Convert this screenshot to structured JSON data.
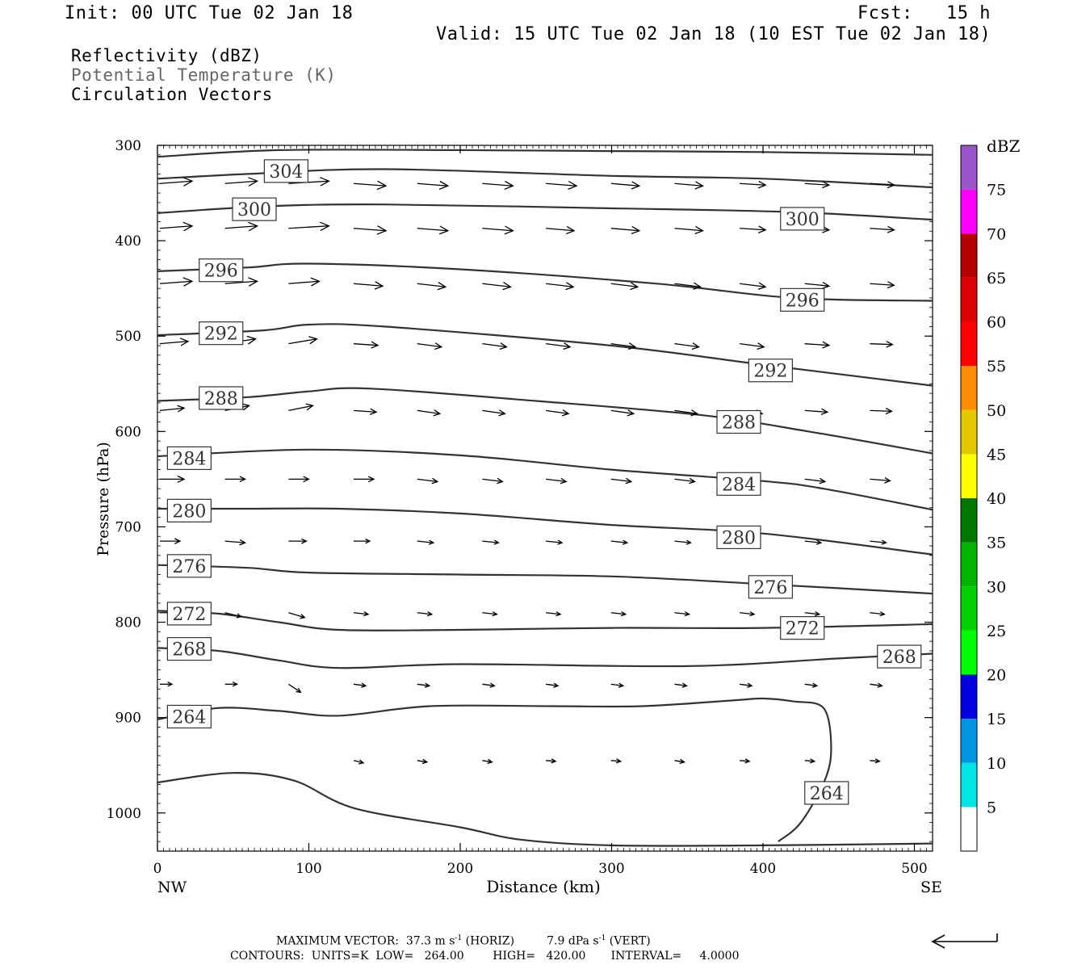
{
  "header": {
    "init": "Init: 00 UTC Tue 02 Jan 18",
    "fcst": "Fcst:   15 h",
    "valid": "Valid: 15 UTC Tue 02 Jan 18 (10 EST Tue 02 Jan 18)"
  },
  "legend_lines": {
    "line1": "Reflectivity (dBZ)",
    "line2": "Potential Temperature (K)",
    "line3": "Circulation Vectors"
  },
  "colors": {
    "contour": "#333333",
    "theta_legend": "#666666",
    "colorbar": [
      "#ffffff",
      "#00e5e5",
      "#0096e1",
      "#0000e1",
      "#00ff00",
      "#00d200",
      "#00b400",
      "#007800",
      "#ffff00",
      "#e6c800",
      "#ff8c00",
      "#ff0000",
      "#dc0000",
      "#b40000",
      "#ff00ff",
      "#9955c9",
      "#ffffff"
    ]
  },
  "chart_data": {
    "type": "cross-section",
    "xlabel": "Distance (km)",
    "ylabel": "Pressure (hPa)",
    "xlim": [
      0,
      512
    ],
    "ylim": [
      1040,
      300
    ],
    "x_ticks": [
      "0",
      "100",
      "200",
      "300",
      "400",
      "500"
    ],
    "x_tick_values": [
      0,
      100,
      200,
      300,
      400,
      500
    ],
    "y_ticks": [
      "300",
      "400",
      "500",
      "600",
      "700",
      "800",
      "900",
      "1000"
    ],
    "y_tick_values": [
      300,
      400,
      500,
      600,
      700,
      800,
      900,
      1000
    ],
    "x_end_labels": {
      "left": "NW",
      "right": "SE"
    },
    "colorbar": {
      "unit": "dBZ",
      "labels": [
        "5",
        "10",
        "15",
        "20",
        "25",
        "30",
        "35",
        "40",
        "45",
        "50",
        "55",
        "60",
        "65",
        "70",
        "75"
      ],
      "bounds": [
        0,
        5,
        10,
        15,
        20,
        25,
        30,
        35,
        40,
        45,
        50,
        55,
        60,
        65,
        70,
        75,
        80
      ]
    },
    "contours": [
      {
        "level": 308,
        "points": [
          [
            0,
            312
          ],
          [
            80,
            305
          ],
          [
            200,
            305
          ],
          [
            300,
            306
          ],
          [
            400,
            307
          ],
          [
            512,
            310
          ]
        ]
      },
      {
        "level": 304,
        "points": [
          [
            0,
            335
          ],
          [
            60,
            330
          ],
          [
            150,
            325
          ],
          [
            300,
            332
          ],
          [
            400,
            335
          ],
          [
            512,
            344
          ]
        ]
      },
      {
        "level": 300,
        "points": [
          [
            0,
            371
          ],
          [
            70,
            364
          ],
          [
            150,
            362
          ],
          [
            300,
            366
          ],
          [
            420,
            370
          ],
          [
            512,
            378
          ]
        ]
      },
      {
        "level": 296,
        "points": [
          [
            0,
            432
          ],
          [
            60,
            428
          ],
          [
            100,
            424
          ],
          [
            200,
            430
          ],
          [
            330,
            445
          ],
          [
            420,
            460
          ],
          [
            512,
            463
          ]
        ]
      },
      {
        "level": 292,
        "points": [
          [
            0,
            499
          ],
          [
            70,
            494
          ],
          [
            100,
            488
          ],
          [
            150,
            490
          ],
          [
            300,
            510
          ],
          [
            400,
            530
          ],
          [
            512,
            552
          ]
        ]
      },
      {
        "level": 288,
        "points": [
          [
            0,
            568
          ],
          [
            60,
            564
          ],
          [
            100,
            558
          ],
          [
            140,
            555
          ],
          [
            250,
            568
          ],
          [
            360,
            583
          ],
          [
            430,
            600
          ],
          [
            512,
            623
          ]
        ]
      },
      {
        "level": 284,
        "points": [
          [
            0,
            626
          ],
          [
            100,
            619
          ],
          [
            200,
            625
          ],
          [
            300,
            640
          ],
          [
            400,
            652
          ],
          [
            440,
            660
          ],
          [
            512,
            682
          ]
        ]
      },
      {
        "level": 280,
        "points": [
          [
            0,
            681
          ],
          [
            60,
            681
          ],
          [
            120,
            681
          ],
          [
            200,
            686
          ],
          [
            300,
            698
          ],
          [
            400,
            707
          ],
          [
            512,
            729
          ]
        ]
      },
      {
        "level": 276,
        "points": [
          [
            0,
            740
          ],
          [
            60,
            743
          ],
          [
            100,
            748
          ],
          [
            200,
            750
          ],
          [
            300,
            752
          ],
          [
            400,
            760
          ],
          [
            512,
            770
          ]
        ]
      },
      {
        "level": 272,
        "points": [
          [
            0,
            788
          ],
          [
            40,
            791
          ],
          [
            80,
            800
          ],
          [
            120,
            808
          ],
          [
            200,
            808
          ],
          [
            300,
            806
          ],
          [
            400,
            806
          ],
          [
            512,
            802
          ]
        ]
      },
      {
        "level": 268,
        "points": [
          [
            0,
            827
          ],
          [
            40,
            830
          ],
          [
            80,
            840
          ],
          [
            120,
            848
          ],
          [
            200,
            844
          ],
          [
            350,
            846
          ],
          [
            450,
            838
          ],
          [
            512,
            833
          ]
        ]
      },
      {
        "level": 264,
        "points": [
          [
            0,
            902
          ],
          [
            40,
            890
          ],
          [
            80,
            893
          ],
          [
            120,
            898
          ],
          [
            180,
            888
          ],
          [
            260,
            888
          ],
          [
            320,
            888
          ],
          [
            380,
            882
          ],
          [
            400,
            880
          ],
          [
            420,
            883
          ],
          [
            440,
            890
          ],
          [
            445,
            930
          ],
          [
            441,
            965
          ],
          [
            425,
            1010
          ],
          [
            410,
            1030
          ]
        ]
      },
      {
        "level": "lower",
        "points": [
          [
            0,
            968
          ],
          [
            50,
            958
          ],
          [
            90,
            966
          ],
          [
            130,
            995
          ],
          [
            200,
            1015
          ],
          [
            240,
            1028
          ],
          [
            300,
            1034
          ],
          [
            400,
            1034
          ],
          [
            512,
            1032
          ]
        ]
      }
    ],
    "contour_labels": [
      {
        "level": "304",
        "x": 85,
        "p": 327
      },
      {
        "level": "300",
        "x": 64,
        "p": 367
      },
      {
        "level": "300",
        "x": 426,
        "p": 377
      },
      {
        "level": "296",
        "x": 42,
        "p": 431
      },
      {
        "level": "296",
        "x": 426,
        "p": 462
      },
      {
        "level": "292",
        "x": 42,
        "p": 497
      },
      {
        "level": "292",
        "x": 405,
        "p": 536
      },
      {
        "level": "288",
        "x": 42,
        "p": 565
      },
      {
        "level": "288",
        "x": 384,
        "p": 590
      },
      {
        "level": "284",
        "x": 21,
        "p": 628
      },
      {
        "level": "284",
        "x": 384,
        "p": 655
      },
      {
        "level": "280",
        "x": 21,
        "p": 683
      },
      {
        "level": "280",
        "x": 384,
        "p": 711
      },
      {
        "level": "276",
        "x": 21,
        "p": 741
      },
      {
        "level": "276",
        "x": 405,
        "p": 763
      },
      {
        "level": "272",
        "x": 21,
        "p": 791
      },
      {
        "level": "272",
        "x": 426,
        "p": 806
      },
      {
        "level": "268",
        "x": 21,
        "p": 828
      },
      {
        "level": "268",
        "x": 490,
        "p": 836
      },
      {
        "level": "264",
        "x": 21,
        "p": 899
      },
      {
        "level": "264",
        "x": 442,
        "p": 979
      }
    ],
    "vectors": [
      {
        "p": 340,
        "x": [
          0,
          43,
          85,
          128,
          170,
          213,
          255,
          298,
          340,
          383,
          426,
          469
        ],
        "dx": [
          40,
          40,
          50,
          40,
          38,
          38,
          38,
          35,
          35,
          32,
          30,
          30
        ],
        "dp": [
          -3,
          -3,
          -3,
          3,
          3,
          3,
          3,
          3,
          3,
          2,
          2,
          2
        ]
      },
      {
        "p": 387,
        "x": [
          0,
          43,
          85,
          128,
          170,
          213,
          255,
          298,
          340,
          383,
          426,
          469
        ],
        "dx": [
          40,
          40,
          50,
          40,
          38,
          38,
          35,
          35,
          35,
          32,
          30,
          30
        ],
        "dp": [
          -3,
          -3,
          -3,
          3,
          3,
          3,
          3,
          3,
          3,
          2,
          2,
          2
        ]
      },
      {
        "p": 445,
        "x": [
          0,
          43,
          85,
          128,
          170,
          213,
          255,
          298,
          340,
          383,
          426,
          469
        ],
        "dx": [
          40,
          40,
          38,
          36,
          35,
          35,
          34,
          33,
          32,
          32,
          30,
          30
        ],
        "dp": [
          -3,
          -3,
          -3,
          3,
          4,
          4,
          4,
          4,
          4,
          4,
          3,
          2
        ]
      },
      {
        "p": 508,
        "x": [
          0,
          43,
          85,
          128,
          170,
          213,
          255,
          298,
          340,
          383,
          426,
          469
        ],
        "dx": [
          35,
          38,
          35,
          30,
          30,
          30,
          30,
          30,
          30,
          30,
          30,
          28
        ],
        "dp": [
          -3,
          -6,
          -6,
          2,
          4,
          4,
          4,
          4,
          4,
          4,
          2,
          1
        ]
      },
      {
        "p": 578,
        "x": [
          0,
          43,
          85,
          128,
          170,
          213,
          255,
          298,
          340,
          383,
          426,
          469
        ],
        "dx": [
          30,
          30,
          30,
          28,
          28,
          28,
          28,
          28,
          28,
          28,
          28,
          27
        ],
        "dp": [
          -3,
          -6,
          -6,
          2,
          4,
          4,
          4,
          4,
          4,
          4,
          2,
          1
        ]
      },
      {
        "p": 650,
        "x": [
          0,
          43,
          85,
          128,
          170,
          213,
          255,
          298,
          340,
          383,
          426,
          469
        ],
        "dx": [
          30,
          25,
          25,
          25,
          25,
          25,
          25,
          25,
          25,
          25,
          25,
          25
        ],
        "dp": [
          0,
          0,
          0,
          0,
          3,
          3,
          3,
          3,
          3,
          3,
          3,
          2
        ]
      },
      {
        "p": 715,
        "x": [
          0,
          43,
          85,
          128,
          170,
          213,
          255,
          298,
          340,
          383,
          426,
          469
        ],
        "dx": [
          25,
          25,
          22,
          20,
          20,
          20,
          20,
          20,
          20,
          20,
          20,
          20
        ],
        "dp": [
          0,
          2,
          0,
          0,
          2,
          2,
          2,
          2,
          2,
          2,
          2,
          2
        ]
      },
      {
        "p": 790,
        "x": [
          0,
          43,
          85,
          128,
          170,
          213,
          255,
          298,
          340,
          383,
          426,
          469
        ],
        "dx": [
          20,
          20,
          20,
          18,
          18,
          18,
          18,
          18,
          18,
          18,
          18,
          18
        ],
        "dp": [
          0,
          5,
          6,
          2,
          2,
          2,
          2,
          2,
          2,
          2,
          2,
          2
        ]
      },
      {
        "p": 865,
        "x": [
          0,
          43,
          85,
          128,
          170,
          213,
          255,
          298,
          340,
          383,
          426,
          469
        ],
        "dx": [
          15,
          15,
          15,
          15,
          15,
          15,
          15,
          15,
          15,
          15,
          15,
          15
        ],
        "dp": [
          0,
          0,
          10,
          2,
          2,
          2,
          2,
          2,
          2,
          2,
          2,
          2
        ]
      },
      {
        "p": 945,
        "x": [
          0,
          43,
          85,
          128,
          170,
          213,
          255,
          298,
          340,
          383,
          426,
          469
        ],
        "dx": [
          0,
          0,
          0,
          12,
          12,
          12,
          12,
          12,
          12,
          12,
          12,
          12
        ],
        "dp": [
          0,
          0,
          0,
          3,
          2,
          2,
          1,
          1,
          2,
          1,
          1,
          1
        ]
      }
    ]
  },
  "footer": {
    "maximum_vector_prefix": "MAXIMUM VECTOR:  37.3 m s",
    "maximum_vector_exp1": "-1",
    "maximum_vector_mid": " (HORIZ)         7.9 dPa s",
    "maximum_vector_exp2": "-1",
    "maximum_vector_suffix": " (VERT)",
    "contours_line": "CONTOURS:  UNITS=K  LOW=   264.00        HIGH=   420.00       INTERVAL=     4.0000"
  }
}
